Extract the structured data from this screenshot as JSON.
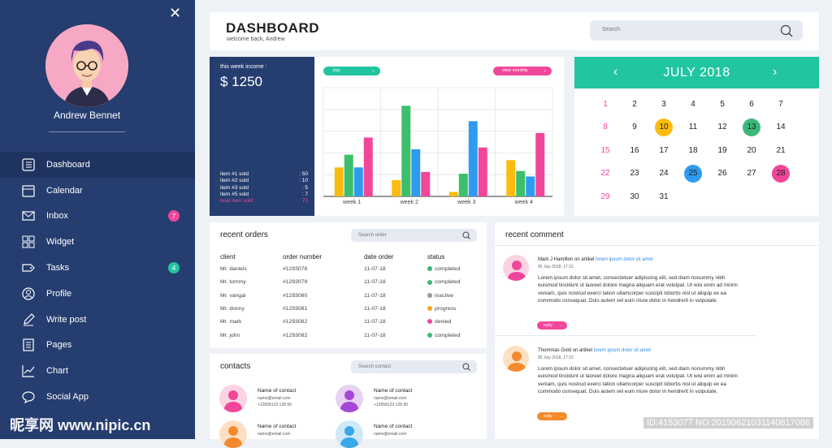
{
  "sidebar": {
    "user_name": "Andrew Bennet",
    "items": [
      {
        "label": "Dashboard",
        "icon": "dashboard-icon",
        "active": true
      },
      {
        "label": "Calendar",
        "icon": "calendar-icon"
      },
      {
        "label": "Inbox",
        "icon": "mail-icon",
        "badge": "7"
      },
      {
        "label": "Widget",
        "icon": "widget-icon"
      },
      {
        "label": "Tasks",
        "icon": "tag-icon",
        "badge": "4"
      },
      {
        "label": "Profile",
        "icon": "user-icon"
      },
      {
        "label": "Write post",
        "icon": "pencil-icon"
      },
      {
        "label": "Pages",
        "icon": "pages-icon"
      },
      {
        "label": "Chart",
        "icon": "chart-icon"
      },
      {
        "label": "Social App",
        "icon": "chat-icon"
      }
    ]
  },
  "header": {
    "title": "DASHBOARD",
    "subtitle": "welcome back, Andrew",
    "search_placeholder": "Search"
  },
  "income": {
    "label": "this week income :",
    "value": "$ 1250",
    "rows": [
      {
        "label": "item #1 sold",
        "value": ": 50"
      },
      {
        "label": "item #2 sold",
        "value": ": 10"
      },
      {
        "label": "item #3 sold",
        "value": ": 5"
      },
      {
        "label": "item #5 sold",
        "value": ": 7"
      },
      {
        "label": "total item sold",
        "value": ": 72"
      }
    ]
  },
  "chart_controls": {
    "month": "July",
    "view": "view monthly"
  },
  "chart_data": {
    "type": "bar",
    "categories": [
      "week 1",
      "week 2",
      "week 3",
      "week 4"
    ],
    "series": [
      {
        "values": [
          32,
          18,
          5,
          40
        ]
      },
      {
        "values": [
          46,
          100,
          25,
          28
        ]
      },
      {
        "values": [
          32,
          52,
          83,
          22
        ]
      },
      {
        "values": [
          65,
          27,
          54,
          70
        ]
      }
    ],
    "ylim": [
      0,
      120
    ],
    "grid": true
  },
  "colors": {
    "sidebar": "#253d6f",
    "teal": "#21c5a0",
    "pink": "#f1479a",
    "orange": "#f9a31b",
    "green": "#3cb878",
    "blue": "#2f9bf0",
    "bar_colors": [
      "#fbbc0f",
      "#3cbf6b",
      "#2f9bf0",
      "#f1479a"
    ]
  },
  "calendar": {
    "title": "JULY 2018",
    "prev": "‹",
    "next": "›",
    "days": [
      "1",
      "2",
      "3",
      "4",
      "5",
      "6",
      "7",
      "8",
      "9",
      "10",
      "11",
      "12",
      "13",
      "14",
      "15",
      "16",
      "17",
      "18",
      "19",
      "20",
      "21",
      "22",
      "23",
      "24",
      "25",
      "26",
      "27",
      "28",
      "29",
      "30",
      "31"
    ],
    "highlights": {
      "10": "#fbbc0f",
      "13": "#3cb878",
      "25": "#2f9bf0",
      "28": "#f1479a"
    }
  },
  "orders": {
    "title": "recent orders",
    "search_placeholder": "Search order",
    "columns": [
      "client",
      "order number",
      "date order",
      "status"
    ],
    "rows": [
      {
        "client": "Mr. daniels",
        "number": "#1293078",
        "date": "11-07-18",
        "status": "completed",
        "color": "#3cb878"
      },
      {
        "client": "Mr. tommy",
        "number": "#1293079",
        "date": "11-07-18",
        "status": "completed",
        "color": "#3cb878"
      },
      {
        "client": "Mr. vangal",
        "number": "#1293080",
        "date": "11-07-18",
        "status": "inactive",
        "color": "#999999"
      },
      {
        "client": "Mr. donny",
        "number": "#1293081",
        "date": "11-07-18",
        "status": "progress",
        "color": "#f9a31b"
      },
      {
        "client": "Mr. mark",
        "number": "#1293082",
        "date": "11-07-18",
        "status": "denied",
        "color": "#f1479a"
      },
      {
        "client": "Mr. john",
        "number": "#1293082",
        "date": "11-07-18",
        "status": "completed",
        "color": "#3cb878"
      }
    ]
  },
  "contacts": {
    "title": "contacts",
    "search_placeholder": "Search contact",
    "items": [
      {
        "name": "Name of contact",
        "email": "name@email.com",
        "phone": "+12658123 128 90",
        "bg": "#fbd3e3",
        "body": "#f1479a"
      },
      {
        "name": "Name of contact",
        "email": "name@email.com",
        "phone": "+12658123 128 90",
        "bg": "#e7d2f3",
        "body": "#a548d8"
      },
      {
        "name": "Name of contact",
        "email": "name@email.com",
        "phone": "",
        "bg": "#fde0c4",
        "body": "#f48a2d"
      },
      {
        "name": "Name of contact",
        "email": "name@email.com",
        "phone": "",
        "bg": "#cfe8f8",
        "body": "#3aa7e8"
      }
    ]
  },
  "comments": {
    "title": "recent comment",
    "items": [
      {
        "author": "Mark J Hamilton",
        "on": "on artikel",
        "link": "lorem ipsum dolor sit amet",
        "date": "05 July 2018, 17:12",
        "text": "Lorem ipsum dolor sit amet, consectetuer adipiscing elit, sed diam nonummy nibh euismod tincidunt ut laoreet dolore magna aliquam erat volutpat. Ut wisi enim ad minim veniam, quis nostrud exerci tation ullamcorper suscipit lobortis nisl ut aliquip ex ea commodo consequat. Duis autem vel eum iriure dolor in hendrerit in vulputate.",
        "reply": "reply",
        "reply_color": "#f1479a",
        "bg": "#fbd3e3",
        "body": "#f1479a"
      },
      {
        "author": "Thommas Gold",
        "on": "on artikel",
        "link": "lorem ipsum dolor sit amet",
        "date": "05 July 2018, 17:12",
        "text": "Lorem ipsum dolor sit amet, consectetuer adipiscing elit, sed diam nonummy nibh euismod tincidunt ut laoreet dolore magna aliquam erat volutpat. Ut wisi enim ad minim veniam, quis nostrud exerci tation ullamcorper suscipit lobortis nisl ut aliquip ex ea commodo consequat. Duis autem vel eum iriure dolor in hendrerit in vulputate.",
        "reply": "reply",
        "reply_color": "#f48a2d",
        "bg": "#fde0c4",
        "body": "#f48a2d"
      }
    ]
  },
  "watermark": {
    "left": "昵享网 www.nipic.cn",
    "right": "ID:4153077 NO:20190621031140817086"
  }
}
